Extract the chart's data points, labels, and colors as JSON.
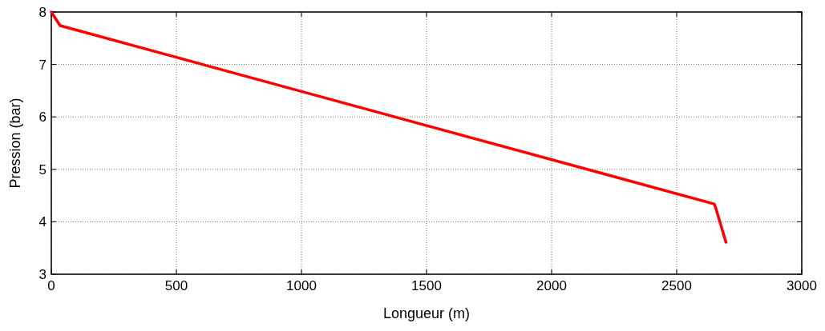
{
  "chart_data": {
    "type": "line",
    "xlabel": "Longueur (m)",
    "ylabel": "Pression (bar)",
    "x": [
      0,
      35,
      2650,
      2656,
      2697
    ],
    "series": [
      {
        "color": "#ff0000",
        "values": [
          8,
          7.74,
          4.34,
          4.27,
          3.61
        ]
      }
    ],
    "xlim": [
      0,
      3000
    ],
    "xticks": [
      0,
      500,
      1000,
      1500,
      2000,
      2500,
      3000
    ],
    "ylim": [
      3,
      8
    ],
    "yticks": [
      3,
      4,
      5,
      6,
      7,
      8
    ],
    "grid": true
  }
}
